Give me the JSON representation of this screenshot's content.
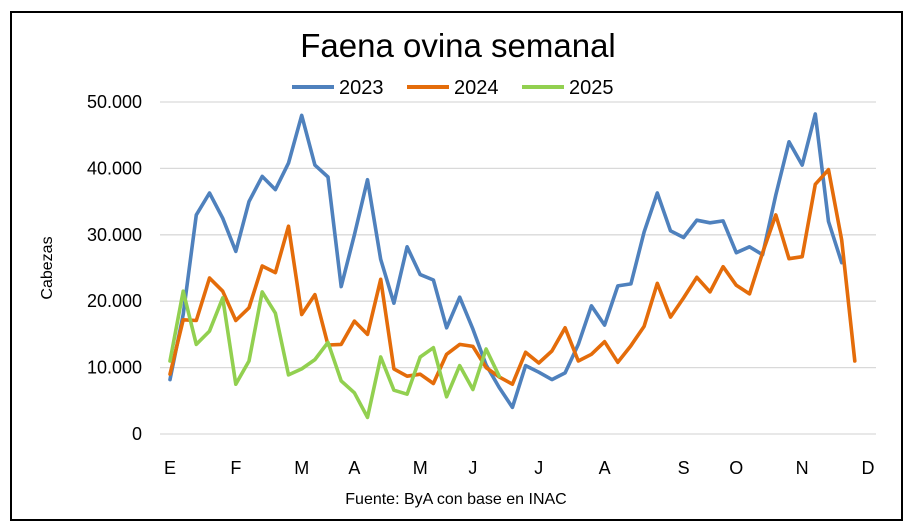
{
  "chart_data": {
    "type": "line",
    "title": "Faena ovina semanal",
    "xlabel": "",
    "ylabel": "Cabezas",
    "source": "Fuente: ByA con base en INAC",
    "ylim": [
      0,
      50000
    ],
    "ytick_labels": [
      "0",
      "10.000",
      "20.000",
      "30.000",
      "40.000",
      "50.000"
    ],
    "ytick_values": [
      0,
      10000,
      20000,
      30000,
      40000,
      50000
    ],
    "month_labels": [
      "E",
      "F",
      "M",
      "A",
      "M",
      "J",
      "J",
      "A",
      "S",
      "O",
      "N",
      "D"
    ],
    "month_label_weeks": [
      1,
      6,
      11,
      15,
      20,
      24,
      29,
      34,
      40,
      44,
      49,
      54
    ],
    "week_range": [
      1,
      54
    ],
    "grid": true,
    "legend_position": "top",
    "series": [
      {
        "name": "2023",
        "color": "#4f81bd",
        "weeks": [
          1,
          2,
          3,
          4,
          5,
          6,
          7,
          8,
          9,
          10,
          11,
          12,
          13,
          14,
          15,
          16,
          17,
          18,
          19,
          20,
          21,
          22,
          23,
          24,
          25,
          26,
          27,
          28,
          29,
          30,
          31,
          32,
          33,
          34,
          35,
          36,
          37,
          38,
          39,
          40,
          41,
          42,
          43,
          44,
          45,
          46,
          47,
          48,
          49,
          50,
          51,
          52,
          53,
          54,
          55
        ],
        "values": [
          8200,
          18000,
          33000,
          36300,
          32500,
          27500,
          35000,
          38800,
          36800,
          40800,
          48000,
          40500,
          38700,
          22200,
          30000,
          38300,
          26300,
          19700,
          28200,
          24000,
          23200,
          16000,
          20600,
          15800,
          10400,
          7000,
          4000,
          10300,
          9300,
          8200,
          9200,
          13500,
          19300,
          16400,
          22300,
          22600,
          30400,
          36300,
          30600,
          29600,
          32200,
          31800,
          32100,
          27300,
          28200,
          27000,
          36000,
          44000,
          40500,
          48200,
          32000,
          25800,
          null,
          null,
          null
        ]
      },
      {
        "name": "2024",
        "color": "#e46c0a",
        "weeks": [
          1,
          2,
          3,
          4,
          5,
          6,
          7,
          8,
          9,
          10,
          11,
          12,
          13,
          14,
          15,
          16,
          17,
          18,
          19,
          20,
          21,
          22,
          23,
          24,
          25,
          26,
          27,
          28,
          29,
          30,
          31,
          32,
          33,
          34,
          35,
          36,
          37,
          38,
          39,
          40,
          41,
          42,
          43,
          44,
          45,
          46,
          47,
          48,
          49,
          50,
          51,
          52,
          53,
          54,
          55
        ],
        "values": [
          9000,
          17200,
          17100,
          23500,
          21500,
          17100,
          19000,
          25300,
          24300,
          31300,
          18000,
          21000,
          13400,
          13500,
          17000,
          15000,
          23300,
          9800,
          8700,
          9000,
          7600,
          12000,
          13500,
          13200,
          10000,
          8600,
          7500,
          12300,
          10700,
          12500,
          16000,
          11000,
          12000,
          13900,
          10800,
          13300,
          16200,
          22700,
          17600,
          20500,
          23600,
          21400,
          25200,
          22400,
          21100,
          27300,
          33000,
          26400,
          26700,
          37600,
          39800,
          29200,
          11000,
          null,
          null
        ]
      },
      {
        "name": "2025",
        "color": "#92d050",
        "weeks": [
          1,
          2,
          3,
          4,
          5,
          6,
          7,
          8,
          9,
          10,
          11,
          12,
          13,
          14,
          15,
          16,
          17,
          18,
          19,
          20,
          21,
          22,
          23,
          24,
          25,
          26
        ],
        "values": [
          11000,
          21500,
          13500,
          15500,
          20500,
          7500,
          11000,
          21400,
          18200,
          8900,
          9800,
          11200,
          13800,
          8000,
          6200,
          2500,
          11600,
          6600,
          6000,
          11600,
          13000,
          5600,
          10300,
          6700,
          12800,
          8700
        ]
      }
    ]
  }
}
